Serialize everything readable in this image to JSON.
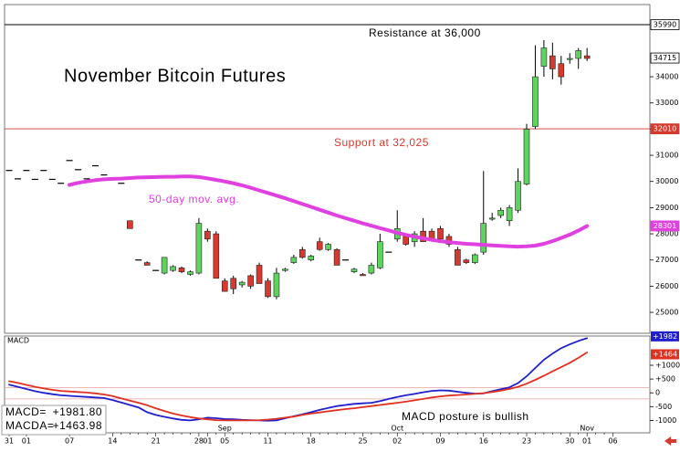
{
  "chart_data": [
    {
      "type": "candlestick",
      "title": "November Bitcoin Futures",
      "open": [
        30420,
        30100,
        30420,
        30080,
        30420,
        30080,
        29930,
        30800,
        30450,
        30100,
        30600,
        30250,
        30080,
        29930,
        28500,
        27000,
        26900,
        26600,
        26500,
        26600,
        26700,
        26450,
        26500,
        28100,
        28000,
        26200,
        26300,
        26050,
        26400,
        26800,
        26200,
        25600,
        26600,
        26900,
        27400,
        27000,
        27700,
        27400,
        27400,
        27000,
        26550,
        26450,
        26500,
        26700,
        27300,
        27800,
        27900,
        27700,
        28100,
        28100,
        28200,
        27900,
        27400,
        27000,
        26900,
        27300,
        28600,
        28700,
        28500,
        28900,
        29900,
        32100,
        34400,
        34800,
        34500,
        34700,
        34700,
        34800,
        null,
        null,
        null
      ],
      "high": [
        30420,
        30100,
        30420,
        30080,
        30420,
        30080,
        29930,
        30800,
        30450,
        30100,
        30600,
        30250,
        30080,
        29930,
        28500,
        27000,
        26950,
        26600,
        27100,
        26800,
        26750,
        26600,
        28600,
        28200,
        28100,
        26300,
        26400,
        26200,
        26450,
        26900,
        26300,
        26700,
        26700,
        27200,
        27500,
        27200,
        27850,
        27650,
        27450,
        27000,
        26700,
        26500,
        26900,
        28000,
        27300,
        28900,
        28000,
        28100,
        28600,
        28200,
        28300,
        28000,
        27500,
        27050,
        27250,
        30400,
        28800,
        29000,
        29100,
        30500,
        32200,
        35200,
        35400,
        35300,
        34800,
        34900,
        35100,
        35100,
        null,
        null,
        null
      ],
      "low": [
        30420,
        30100,
        30420,
        30080,
        30420,
        30080,
        29930,
        30800,
        30450,
        30100,
        30600,
        30250,
        30080,
        29930,
        28200,
        27000,
        26800,
        26600,
        26450,
        26550,
        26500,
        26400,
        26450,
        27700,
        26300,
        25800,
        25700,
        25950,
        25900,
        26100,
        25550,
        25500,
        26550,
        26850,
        27050,
        26950,
        27350,
        27350,
        26800,
        27000,
        26500,
        26400,
        26450,
        26650,
        27300,
        27700,
        27550,
        27500,
        27700,
        27700,
        27700,
        27500,
        26800,
        26850,
        26850,
        27200,
        28500,
        28600,
        28300,
        28800,
        29850,
        32000,
        34000,
        33900,
        33700,
        34500,
        34300,
        34600,
        null,
        null,
        null
      ],
      "close": [
        30420,
        30100,
        30420,
        30080,
        30420,
        30080,
        29930,
        30800,
        30450,
        30100,
        30600,
        30250,
        30080,
        29930,
        28200,
        27000,
        26800,
        26600,
        27100,
        26750,
        26550,
        26550,
        28400,
        27800,
        26300,
        25800,
        25900,
        26150,
        26000,
        26100,
        25600,
        26500,
        26650,
        27100,
        27100,
        27150,
        27400,
        27600,
        26800,
        27000,
        26650,
        26400,
        26800,
        27700,
        27300,
        28200,
        27600,
        28000,
        27700,
        27800,
        27800,
        27600,
        26800,
        26900,
        27200,
        28400,
        28600,
        28900,
        29000,
        30000,
        32000,
        34000,
        35100,
        34300,
        34000,
        34700,
        35000,
        34700,
        null,
        null,
        null
      ],
      "up_color": "#5ed35e",
      "down_color": "#d63a2f",
      "ylim": [
        24200,
        36060
      ],
      "yticks": [
        25000,
        26000,
        27000,
        28000,
        29000,
        30000,
        31000,
        32000,
        33000,
        34000
      ],
      "series": [
        {
          "name": "50-day mov. avg.",
          "color": "#e040e0",
          "values": [
            null,
            null,
            null,
            null,
            null,
            null,
            null,
            29870,
            29950,
            30000,
            30050,
            30080,
            30100,
            30110,
            30130,
            30150,
            30160,
            30170,
            30180,
            30180,
            30190,
            30190,
            30170,
            30120,
            30060,
            30000,
            29930,
            29850,
            29760,
            29660,
            29560,
            29460,
            29360,
            29250,
            29140,
            29030,
            28920,
            28810,
            28700,
            28600,
            28500,
            28400,
            28310,
            28220,
            28130,
            28040,
            27960,
            27890,
            27830,
            27770,
            27720,
            27680,
            27650,
            27620,
            27600,
            27580,
            27560,
            27540,
            27520,
            27510,
            27520,
            27550,
            27620,
            27720,
            27840,
            27970,
            28120,
            28300,
            null,
            null,
            null
          ]
        }
      ],
      "price_markers": [
        {
          "value": 35990,
          "color": "#000000",
          "line": true
        },
        {
          "value": 34715,
          "color": "#000000",
          "line": false
        },
        {
          "value": 32010,
          "color": "#d63a2f",
          "line": true
        },
        {
          "value": 28301,
          "color": "#e040e0",
          "line": false
        }
      ],
      "annotations": [
        "Resistance at 36,000",
        "Support at 32,025"
      ]
    },
    {
      "type": "line",
      "title": "MACD",
      "categories": [
        "31",
        null,
        "01",
        null,
        null,
        null,
        null,
        "07",
        null,
        null,
        null,
        null,
        "14",
        null,
        null,
        null,
        null,
        "21",
        null,
        null,
        null,
        null,
        "28",
        "01",
        null,
        "05",
        null,
        null,
        null,
        null,
        "11",
        null,
        null,
        null,
        null,
        "18",
        null,
        null,
        null,
        null,
        null,
        "25",
        null,
        null,
        null,
        "02",
        null,
        null,
        null,
        null,
        "09",
        null,
        null,
        null,
        null,
        "16",
        null,
        null,
        null,
        null,
        "23",
        null,
        null,
        null,
        null,
        "30",
        null,
        "01",
        null,
        null,
        "06"
      ],
      "month_labels": [
        {
          "index": 25,
          "label": "Sep"
        },
        {
          "index": 45,
          "label": "Oct"
        },
        {
          "index": 67,
          "label": "Nov"
        }
      ],
      "series": [
        {
          "color": "#1f1fd0",
          "values": [
            300,
            220,
            140,
            60,
            0,
            -50,
            -90,
            -110,
            -130,
            -150,
            -170,
            -190,
            -260,
            -350,
            -440,
            -530,
            -700,
            -800,
            -870,
            -930,
            -980,
            -1000,
            -960,
            -900,
            -920,
            -950,
            -960,
            -980,
            -990,
            -1000,
            -1010,
            -1000,
            -920,
            -850,
            -780,
            -700,
            -620,
            -550,
            -480,
            -440,
            -400,
            -380,
            -360,
            -300,
            -220,
            -150,
            -90,
            -40,
            20,
            70,
            90,
            80,
            40,
            0,
            -30,
            -20,
            60,
            130,
            200,
            350,
            600,
            900,
            1200,
            1420,
            1620,
            1760,
            1880,
            1981.8,
            null,
            null,
            null
          ]
        },
        {
          "color": "#e03020",
          "values": [
            420,
            360,
            290,
            220,
            160,
            110,
            70,
            50,
            30,
            10,
            -20,
            -60,
            -120,
            -200,
            -280,
            -360,
            -450,
            -560,
            -660,
            -750,
            -820,
            -880,
            -930,
            -960,
            -990,
            -1000,
            -1000,
            -1000,
            -1000,
            -990,
            -970,
            -940,
            -900,
            -860,
            -800,
            -750,
            -710,
            -670,
            -630,
            -590,
            -560,
            -520,
            -480,
            -440,
            -400,
            -360,
            -320,
            -270,
            -220,
            -170,
            -130,
            -100,
            -80,
            -60,
            -40,
            -10,
            30,
            80,
            140,
            220,
            330,
            470,
            620,
            780,
            930,
            1090,
            1270,
            1463.98,
            null,
            null,
            null
          ]
        }
      ],
      "ylim": [
        -1450,
        2060
      ],
      "yticks": [
        {
          "value": 1000,
          "label": "+1000"
        },
        {
          "value": 500,
          "label": "+500"
        },
        0,
        -500,
        -1000
      ],
      "reference_lines": [
        190,
        -220
      ],
      "last_labels": [
        "+1982",
        "+1464"
      ],
      "readout": [
        {
          "label": "MACD=",
          "value": "+1981.80"
        },
        {
          "label": "MACDA=",
          "value": "+1463.98"
        }
      ],
      "annotation": "MACD posture is bullish"
    }
  ]
}
